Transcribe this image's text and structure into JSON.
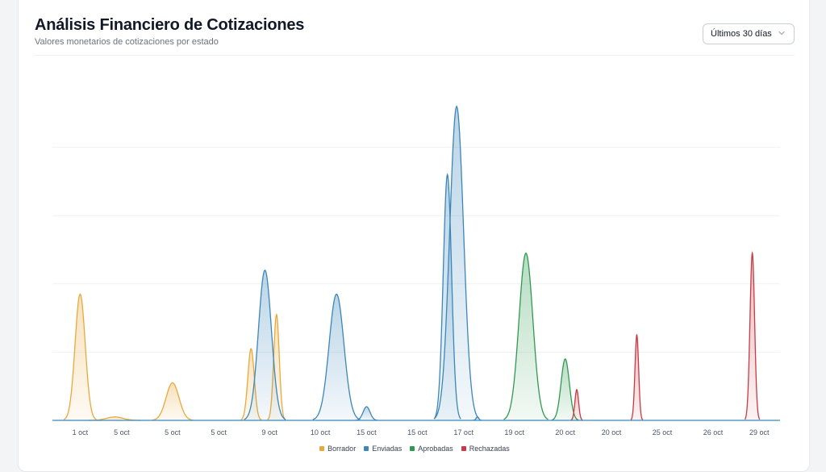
{
  "header": {
    "title": "Análisis Financiero de Cotizaciones",
    "subtitle": "Valores monetarios de cotizaciones por estado"
  },
  "range_select": {
    "selected": "Últimos 30 días",
    "icon": "chevron-down-icon"
  },
  "chart_data": {
    "type": "area",
    "title": "",
    "xlabel": "",
    "ylabel": "",
    "ylim": [
      0,
      100
    ],
    "grid": true,
    "legend_position": "bottom",
    "x_ticks": [
      {
        "label": "1 oct",
        "x": 1.2
      },
      {
        "label": "5 oct",
        "x": 3.0
      },
      {
        "label": "5 oct",
        "x": 5.2
      },
      {
        "label": "5 oct",
        "x": 7.2
      },
      {
        "label": "9 oct",
        "x": 9.4
      },
      {
        "label": "10 oct",
        "x": 11.6
      },
      {
        "label": "15 oct",
        "x": 13.6
      },
      {
        "label": "15 oct",
        "x": 15.8
      },
      {
        "label": "17 oct",
        "x": 17.8
      },
      {
        "label": "19 oct",
        "x": 20.0
      },
      {
        "label": "20 oct",
        "x": 22.2
      },
      {
        "label": "20 oct",
        "x": 24.2
      },
      {
        "label": "25 oct",
        "x": 26.4
      },
      {
        "label": "26 oct",
        "x": 28.6
      },
      {
        "label": "29 oct",
        "x": 30.6
      }
    ],
    "xlim": [
      0,
      31.5
    ],
    "series": [
      {
        "name": "Borrador",
        "color": "#e8a93c",
        "peaks": [
          {
            "x": 1.2,
            "y": 37,
            "w": 0.22
          },
          {
            "x": 2.7,
            "y": 1,
            "w": 0.35
          },
          {
            "x": 5.2,
            "y": 11,
            "w": 0.28
          },
          {
            "x": 8.6,
            "y": 21,
            "w": 0.14
          },
          {
            "x": 9.7,
            "y": 31,
            "w": 0.12
          }
        ]
      },
      {
        "name": "Enviadas",
        "color": "#3b86ba",
        "peaks": [
          {
            "x": 9.2,
            "y": 44,
            "w": 0.28
          },
          {
            "x": 12.3,
            "y": 37,
            "w": 0.32
          },
          {
            "x": 13.6,
            "y": 4,
            "w": 0.15
          },
          {
            "x": 17.1,
            "y": 72,
            "w": 0.18
          },
          {
            "x": 17.5,
            "y": 92,
            "w": 0.3
          },
          {
            "x": 18.4,
            "y": 1,
            "w": 0.06
          }
        ]
      },
      {
        "name": "Aprobadas",
        "color": "#2f9a4f",
        "peaks": [
          {
            "x": 20.5,
            "y": 49,
            "w": 0.3
          },
          {
            "x": 22.2,
            "y": 18,
            "w": 0.18
          }
        ]
      },
      {
        "name": "Rechazadas",
        "color": "#c93a44",
        "peaks": [
          {
            "x": 22.7,
            "y": 9,
            "w": 0.08
          },
          {
            "x": 25.3,
            "y": 25,
            "w": 0.08
          },
          {
            "x": 30.3,
            "y": 49,
            "w": 0.1
          }
        ]
      }
    ]
  }
}
